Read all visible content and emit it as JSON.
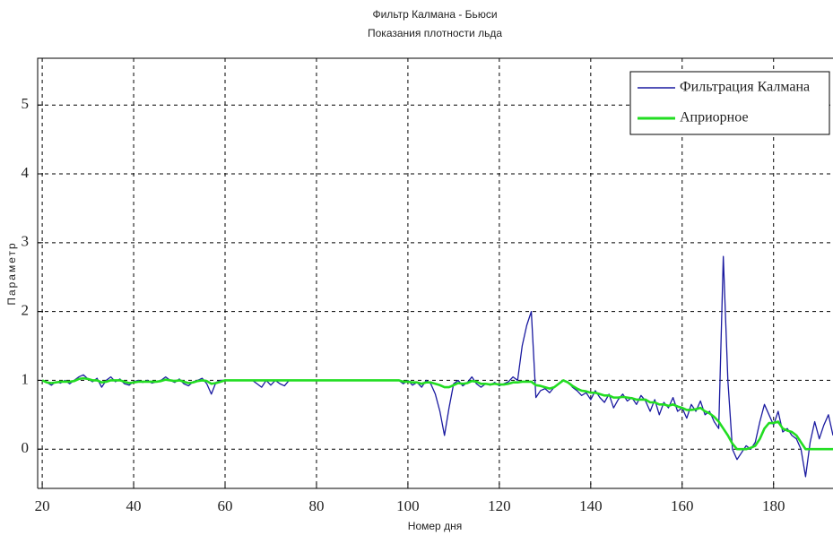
{
  "chart_data": {
    "type": "line",
    "title": "Фильтр Калмана - Бьюси",
    "subtitle": "Показания плотности льда",
    "x_label": "Номер дня",
    "y_label": "Параметр",
    "x": [
      20,
      21,
      22,
      23,
      24,
      25,
      26,
      27,
      28,
      29,
      30,
      31,
      32,
      33,
      34,
      35,
      36,
      37,
      38,
      39,
      40,
      41,
      42,
      43,
      44,
      45,
      46,
      47,
      48,
      49,
      50,
      51,
      52,
      53,
      54,
      55,
      56,
      57,
      58,
      59,
      60,
      61,
      62,
      63,
      64,
      65,
      66,
      67,
      68,
      69,
      70,
      71,
      72,
      73,
      74,
      75,
      76,
      77,
      78,
      79,
      80,
      81,
      82,
      83,
      84,
      85,
      86,
      87,
      88,
      89,
      90,
      91,
      92,
      93,
      94,
      95,
      96,
      97,
      98,
      99,
      100,
      101,
      102,
      103,
      104,
      105,
      106,
      107,
      108,
      109,
      110,
      111,
      112,
      113,
      114,
      115,
      116,
      117,
      118,
      119,
      120,
      121,
      122,
      123,
      124,
      125,
      126,
      127,
      128,
      129,
      130,
      131,
      132,
      133,
      134,
      135,
      136,
      137,
      138,
      139,
      140,
      141,
      142,
      143,
      144,
      145,
      146,
      147,
      148,
      149,
      150,
      151,
      152,
      153,
      154,
      155,
      156,
      157,
      158,
      159,
      160,
      161,
      162,
      163,
      164,
      165,
      166,
      167,
      168,
      169,
      170,
      171,
      172,
      173,
      174,
      175,
      176,
      177,
      178,
      179,
      180,
      181,
      182,
      183,
      184,
      185,
      186,
      187,
      188,
      189,
      190,
      191,
      192,
      193
    ],
    "series": [
      {
        "name": "Фильтрация Калмана",
        "color": "#1a1aa0",
        "values": [
          1.0,
          0.97,
          0.93,
          0.98,
          0.96,
          1.0,
          0.95,
          1.0,
          1.05,
          1.08,
          1.02,
          0.98,
          1.03,
          0.9,
          1.0,
          1.05,
          0.98,
          1.02,
          0.95,
          0.93,
          0.98,
          1.0,
          0.97,
          1.0,
          0.96,
          0.98,
          1.0,
          1.05,
          1.0,
          0.97,
          1.02,
          0.95,
          0.92,
          0.98,
          1.0,
          1.03,
          0.95,
          0.8,
          0.97,
          1.0,
          1.0,
          1,
          1,
          1,
          1,
          1,
          1,
          0.95,
          0.9,
          1.0,
          0.93,
          1.0,
          0.95,
          0.92,
          1.0,
          1,
          1,
          1,
          1,
          1,
          1,
          1,
          1,
          1,
          1,
          1,
          1,
          1,
          1,
          1,
          1,
          1,
          1,
          1,
          1,
          1,
          1,
          1,
          1,
          0.95,
          1.0,
          0.93,
          0.97,
          0.9,
          1.0,
          0.95,
          0.8,
          0.55,
          0.2,
          0.6,
          0.95,
          1.0,
          0.92,
          0.97,
          1.05,
          0.95,
          0.9,
          0.95,
          0.93,
          0.97,
          0.92,
          0.95,
          0.98,
          1.05,
          1.0,
          1.5,
          1.8,
          2.0,
          0.75,
          0.85,
          0.88,
          0.82,
          0.9,
          0.95,
          1.0,
          0.98,
          0.9,
          0.85,
          0.78,
          0.82,
          0.72,
          0.85,
          0.75,
          0.68,
          0.8,
          0.6,
          0.72,
          0.8,
          0.7,
          0.75,
          0.65,
          0.78,
          0.7,
          0.55,
          0.72,
          0.5,
          0.68,
          0.6,
          0.75,
          0.55,
          0.6,
          0.45,
          0.65,
          0.55,
          0.7,
          0.5,
          0.55,
          0.4,
          0.3,
          2.8,
          1.0,
          0.0,
          -0.15,
          -0.05,
          0.05,
          0.0,
          0.1,
          0.4,
          0.65,
          0.5,
          0.35,
          0.55,
          0.25,
          0.3,
          0.2,
          0.15,
          0.0,
          -0.4,
          0.1,
          0.4,
          0.15,
          0.35,
          0.5,
          0.2
        ]
      },
      {
        "name": "Априорное",
        "color": "#22dd22",
        "values": [
          1.0,
          0.97,
          0.96,
          0.97,
          0.98,
          0.98,
          0.98,
          0.99,
          1.02,
          1.03,
          1.02,
          1.0,
          1.0,
          0.97,
          0.98,
          1.0,
          1.0,
          1.0,
          0.98,
          0.96,
          0.97,
          0.98,
          0.98,
          0.98,
          0.98,
          0.98,
          0.99,
          1.01,
          1.0,
          0.99,
          1.0,
          0.98,
          0.96,
          0.97,
          0.99,
          1.0,
          0.99,
          0.95,
          0.96,
          0.98,
          1.0,
          1,
          1,
          1,
          1,
          1,
          1,
          1,
          1,
          1,
          1,
          1,
          1,
          1,
          1,
          1,
          1,
          1,
          1,
          1,
          1,
          1,
          1,
          1,
          1,
          1,
          1,
          1,
          1,
          1,
          1,
          1,
          1,
          1,
          1,
          1,
          1,
          1,
          1,
          0.98,
          0.98,
          0.97,
          0.97,
          0.95,
          0.97,
          0.97,
          0.95,
          0.93,
          0.9,
          0.9,
          0.93,
          0.96,
          0.95,
          0.96,
          0.99,
          0.98,
          0.95,
          0.95,
          0.94,
          0.95,
          0.94,
          0.94,
          0.95,
          0.97,
          0.97,
          0.98,
          0.98,
          0.98,
          0.93,
          0.92,
          0.9,
          0.88,
          0.9,
          0.95,
          1.0,
          0.97,
          0.92,
          0.88,
          0.85,
          0.84,
          0.82,
          0.82,
          0.8,
          0.78,
          0.78,
          0.75,
          0.75,
          0.76,
          0.75,
          0.74,
          0.72,
          0.72,
          0.72,
          0.68,
          0.68,
          0.65,
          0.65,
          0.63,
          0.65,
          0.62,
          0.6,
          0.57,
          0.57,
          0.58,
          0.6,
          0.55,
          0.52,
          0.47,
          0.4,
          0.3,
          0.2,
          0.08,
          0,
          0,
          0,
          0.02,
          0.05,
          0.15,
          0.3,
          0.38,
          0.38,
          0.4,
          0.3,
          0.27,
          0.25,
          0.2,
          0.1,
          0,
          0,
          0,
          0,
          0,
          0,
          0
        ]
      }
    ],
    "xlim": [
      19,
      193
    ],
    "ylim": [
      -0.57,
      5.68
    ],
    "xticks": [
      20,
      40,
      60,
      80,
      100,
      120,
      140,
      160,
      180
    ],
    "yticks": [
      0,
      1,
      2,
      3,
      4,
      5
    ],
    "grid": true,
    "legend": "upper right"
  }
}
